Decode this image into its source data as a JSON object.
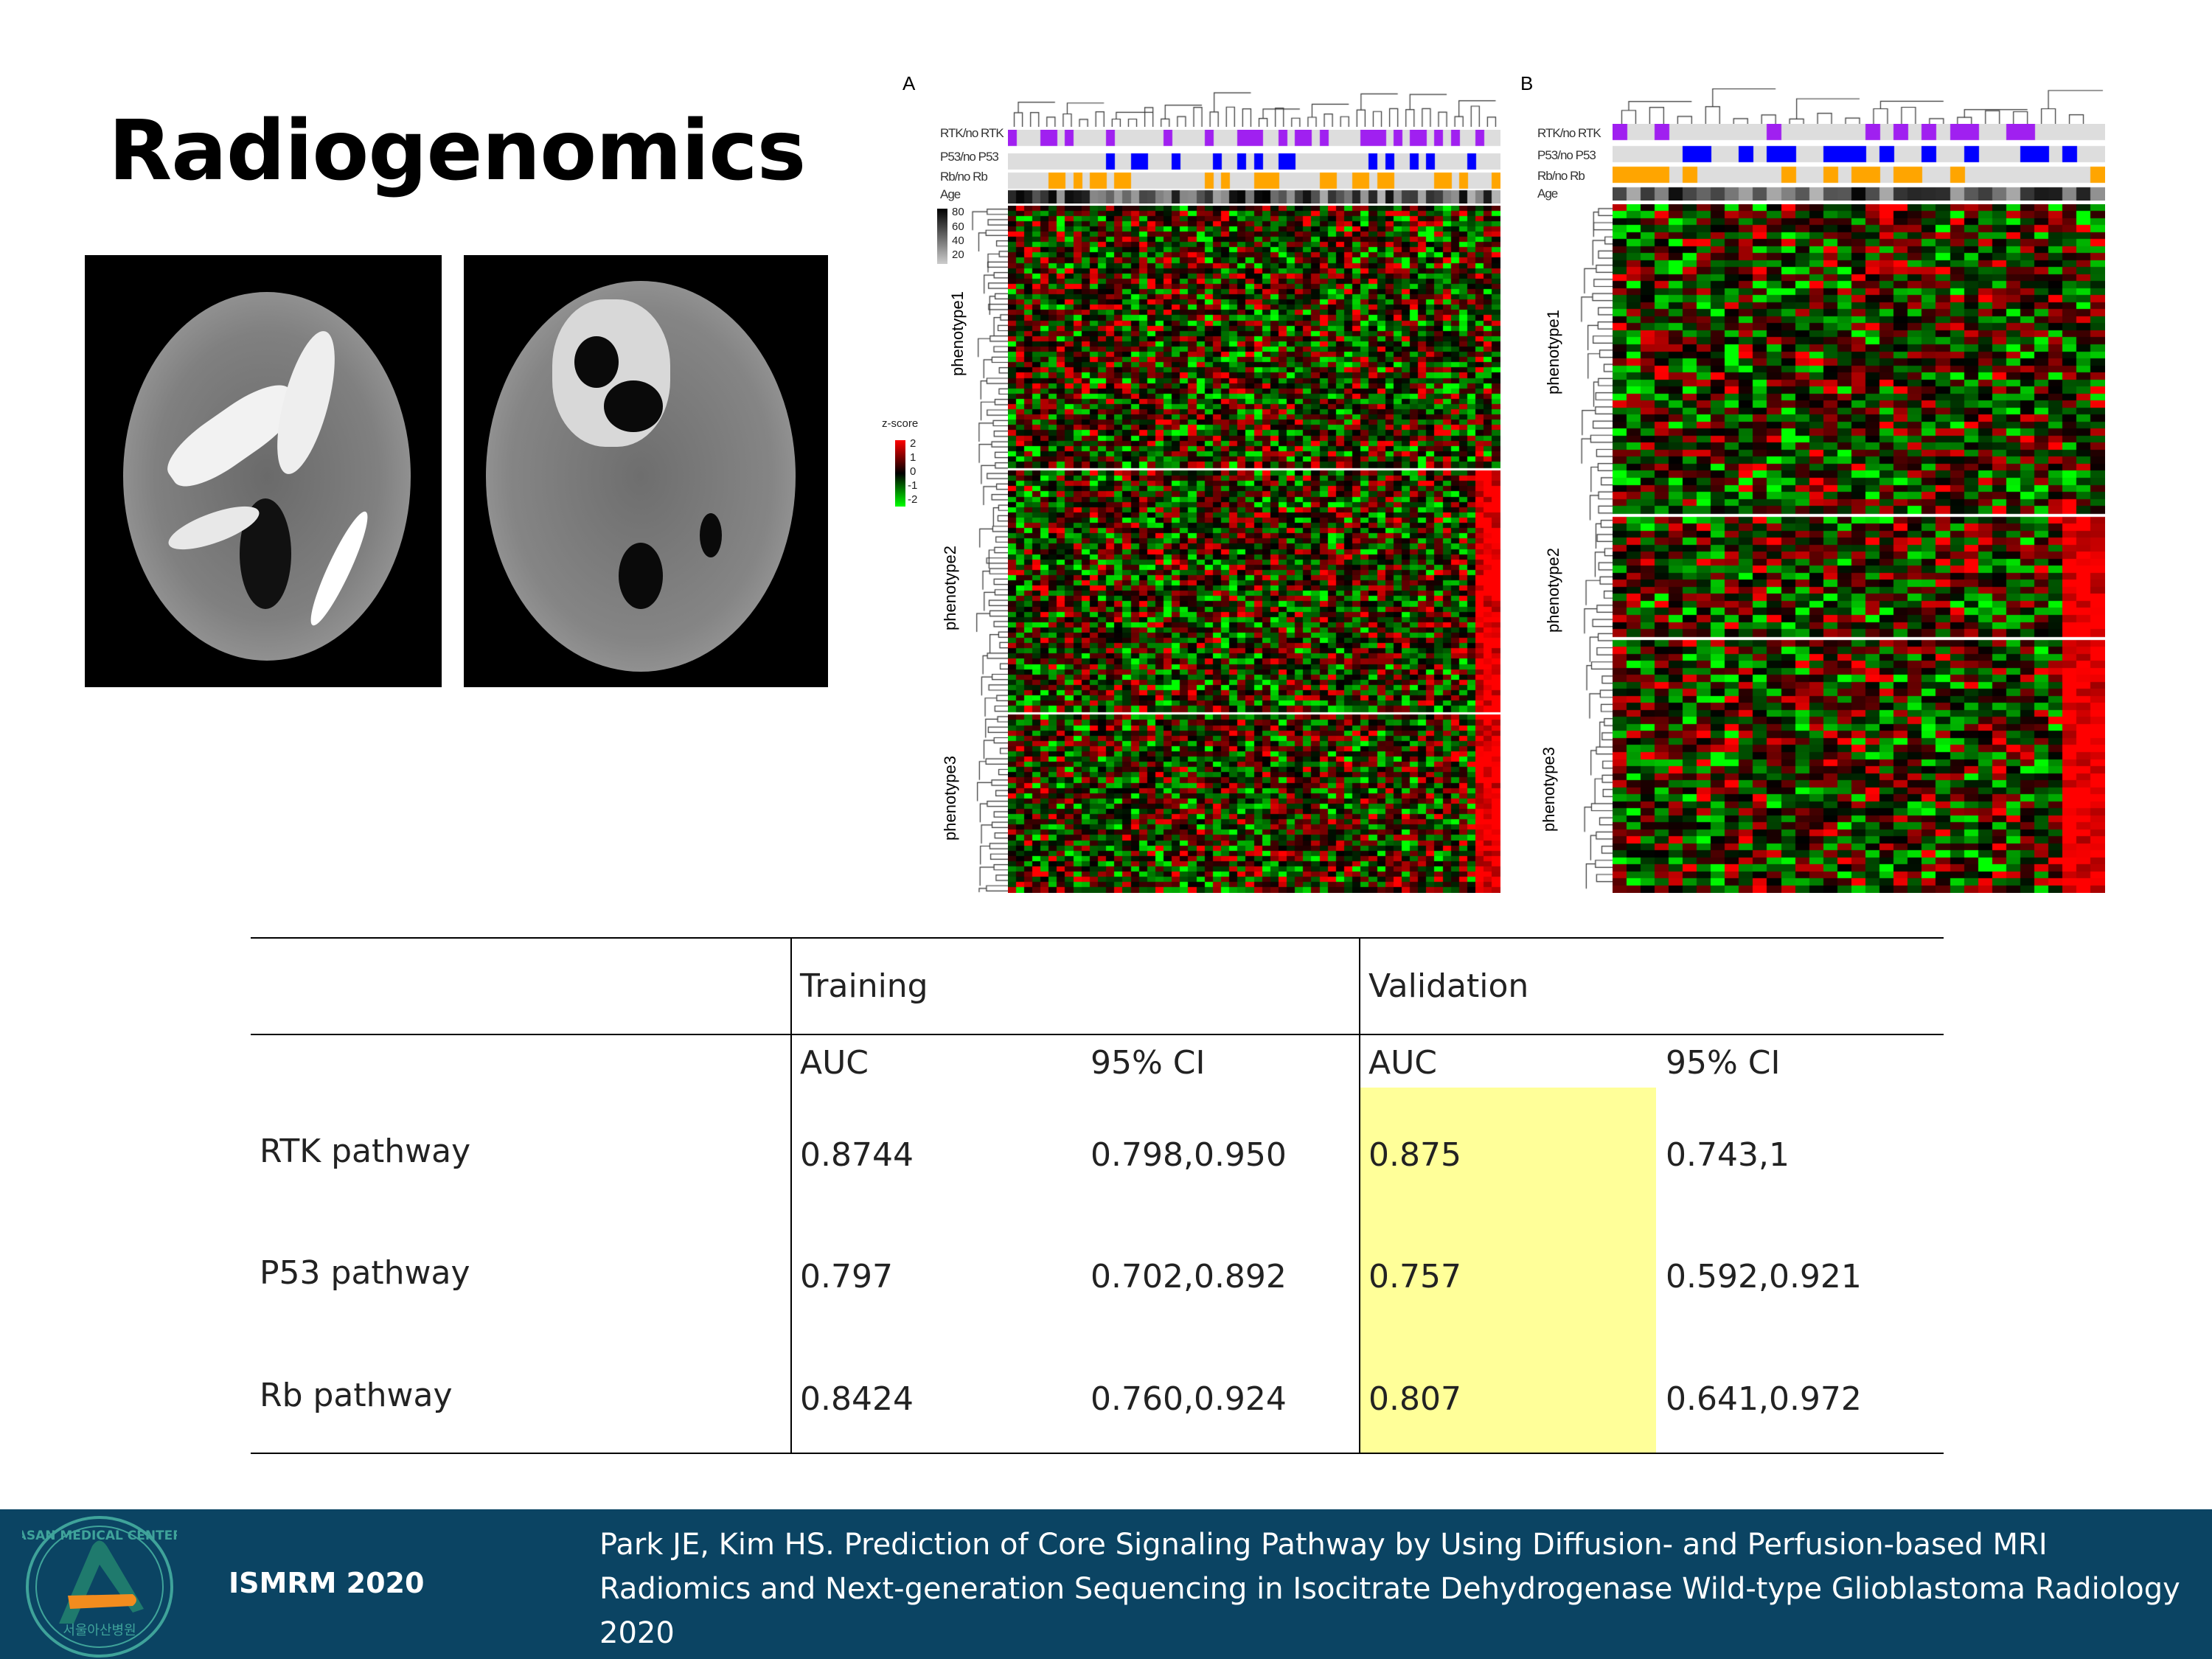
{
  "slide": {
    "title": "Radiogenomics"
  },
  "figure": {
    "panel_a": {
      "label": "A",
      "annotation_rows": [
        "RTK/no RTK",
        "P53/no P53",
        "Rb/no Rb",
        "Age"
      ],
      "phenotypes": [
        "phenotype1",
        "phenotype2",
        "phenotype3"
      ],
      "age_legend": [
        "80",
        "60",
        "40",
        "20"
      ],
      "zscore_title": "z-score",
      "zscore_legend": [
        "2",
        "1",
        "0",
        "-1",
        "-2"
      ]
    },
    "panel_b": {
      "label": "B",
      "annotation_rows": [
        "RTK/no RTK",
        "P53/no P53",
        "Rb/no Rb",
        "Age"
      ],
      "phenotypes": [
        "phenotype1",
        "phenotype2",
        "phenotype3"
      ]
    },
    "colors": {
      "rtk": "#a020f0",
      "p53": "#0000ff",
      "rb": "#ffa500",
      "high": "#ff0000",
      "low": "#00ff00",
      "highlight": "#ffff99"
    }
  },
  "table": {
    "groups": [
      "Training",
      "Validation"
    ],
    "subheaders": [
      "AUC",
      "95% CI",
      "AUC",
      "95% CI"
    ],
    "rows": [
      {
        "label": "RTK pathway",
        "train_auc": "0.8744",
        "train_ci": "0.798,0.950",
        "val_auc": "0.875",
        "val_ci": "0.743,1"
      },
      {
        "label": "P53 pathway",
        "train_auc": "0.797",
        "train_ci": "0.702,0.892",
        "val_auc": "0.757",
        "val_ci": "0.592,0.921"
      },
      {
        "label": "Rb pathway",
        "train_auc": "0.8424",
        "train_ci": "0.760,0.924",
        "val_auc": "0.807",
        "val_ci": "0.641,0.972"
      }
    ]
  },
  "footer": {
    "logo_text": "ASAN MEDICAL CENTER 서울아산병원",
    "conference": "ISMRM 2020",
    "citation_lines": [
      "Park JE, Kim HS. Prediction of Core Signaling Pathway by Using Diffusion- and Perfusion-based MRI",
      "Radiomics and Next-generation Sequencing in Isocitrate Dehydrogenase Wild-type Glioblastoma Radiology",
      "2020"
    ]
  }
}
